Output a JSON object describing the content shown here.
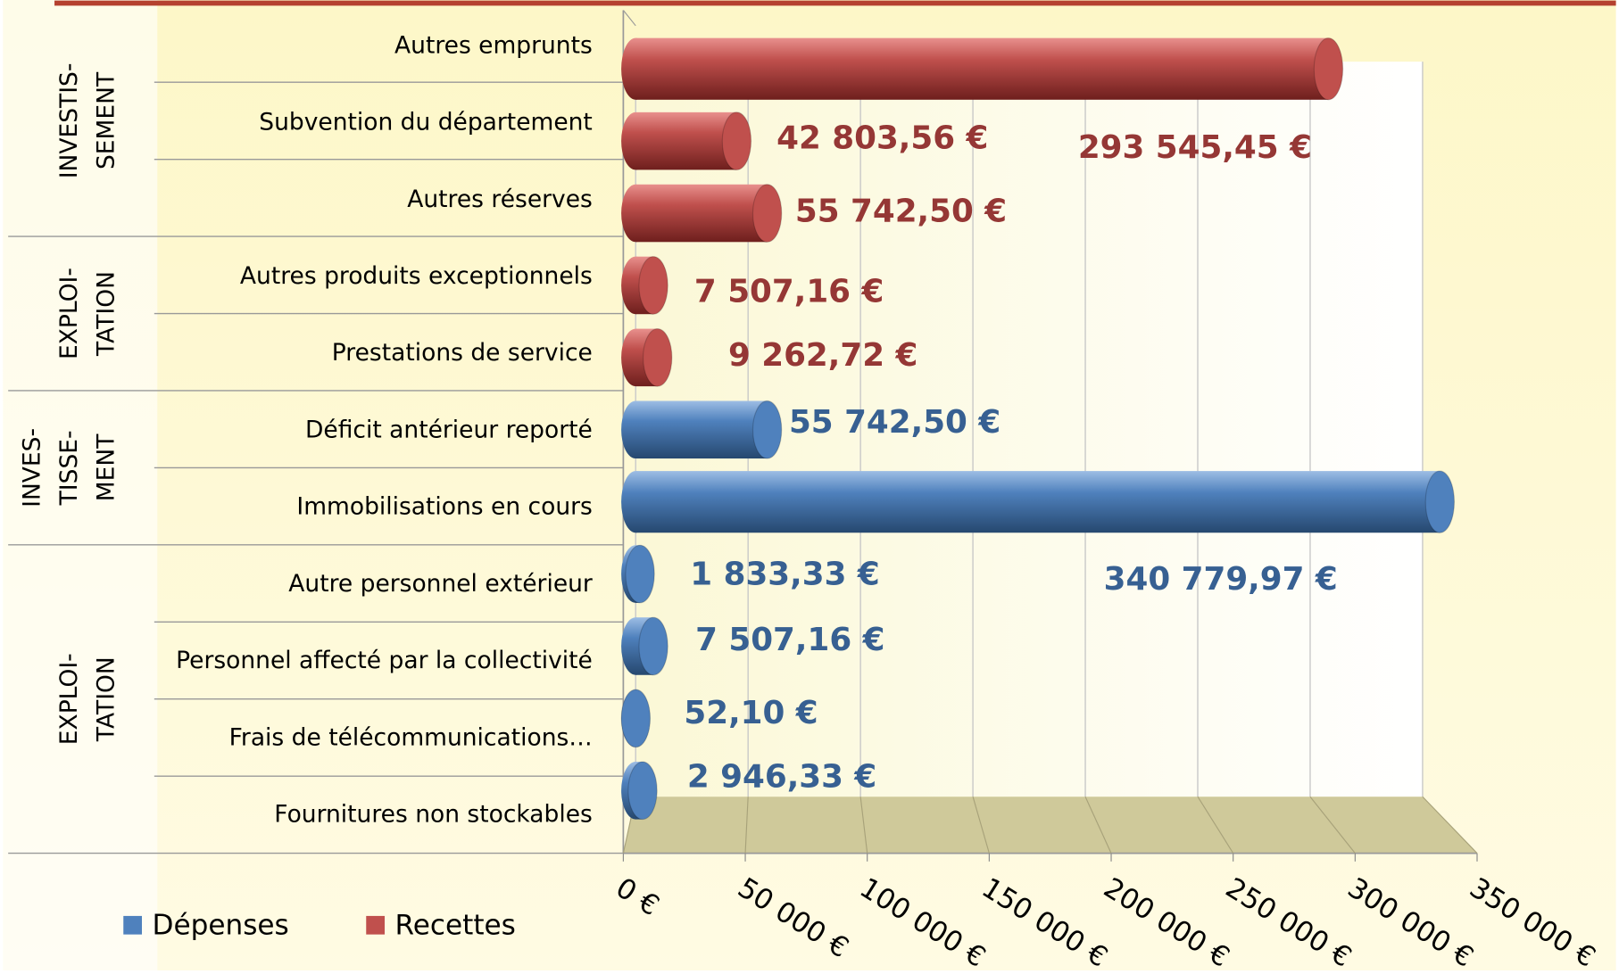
{
  "chart_data": {
    "type": "bar",
    "categories": [
      "Autres emprunts",
      "Subvention du département",
      "Autres réserves",
      "Autres produits exceptionnels",
      "Prestations de service",
      "Déficit antérieur reporté",
      "Immobilisations en cours",
      "Autre personnel extérieur",
      "Personnel affecté par la collectivité",
      "Frais de télécommunications…",
      "Fournitures non stockables"
    ],
    "groups": [
      {
        "lines": [
          "INVESTIS-",
          "SEMENT"
        ]
      },
      {
        "lines": [
          "EXPLOI-",
          "TATION"
        ]
      },
      {
        "lines": [
          "INVES-",
          "TISSE-",
          "MENT"
        ]
      },
      {
        "lines": [
          "EXPLOI-",
          "TATION"
        ]
      }
    ],
    "series": [
      {
        "name": "Dépenses",
        "color": "#4f81bd",
        "label_color": "#376092",
        "values": [
          null,
          null,
          null,
          null,
          null,
          55742.5,
          340779.97,
          1833.33,
          7507.16,
          52.1,
          2946.33
        ],
        "value_labels": [
          null,
          null,
          null,
          null,
          null,
          "55 742,50 €",
          "340 779,97 €",
          "1 833,33 €",
          "7 507,16 €",
          "52,10 €",
          "2 946,33 €"
        ]
      },
      {
        "name": "Recettes",
        "color": "#c0504d",
        "label_color": "#953735",
        "values": [
          293545.45,
          42803.56,
          55742.5,
          7507.16,
          9262.72,
          null,
          null,
          null,
          null,
          null,
          null
        ],
        "value_labels": [
          "293 545,45 €",
          "42 803,56 €",
          "55 742,50 €",
          "7 507,16 €",
          "9 262,72 €",
          null,
          null,
          null,
          null,
          null,
          null
        ]
      }
    ],
    "xlim": [
      0,
      350000
    ],
    "xticks": [
      {
        "value": 0,
        "label": "0 €"
      },
      {
        "value": 50000,
        "label": "50 000 €"
      },
      {
        "value": 100000,
        "label": "100 000 €"
      },
      {
        "value": 150000,
        "label": "150 000 €"
      },
      {
        "value": 200000,
        "label": "200 000 €"
      },
      {
        "value": 250000,
        "label": "250 000 €"
      },
      {
        "value": 300000,
        "label": "300 000 €"
      },
      {
        "value": 350000,
        "label": "350 000 €"
      }
    ],
    "grid": true,
    "legend": "bottom-left"
  }
}
